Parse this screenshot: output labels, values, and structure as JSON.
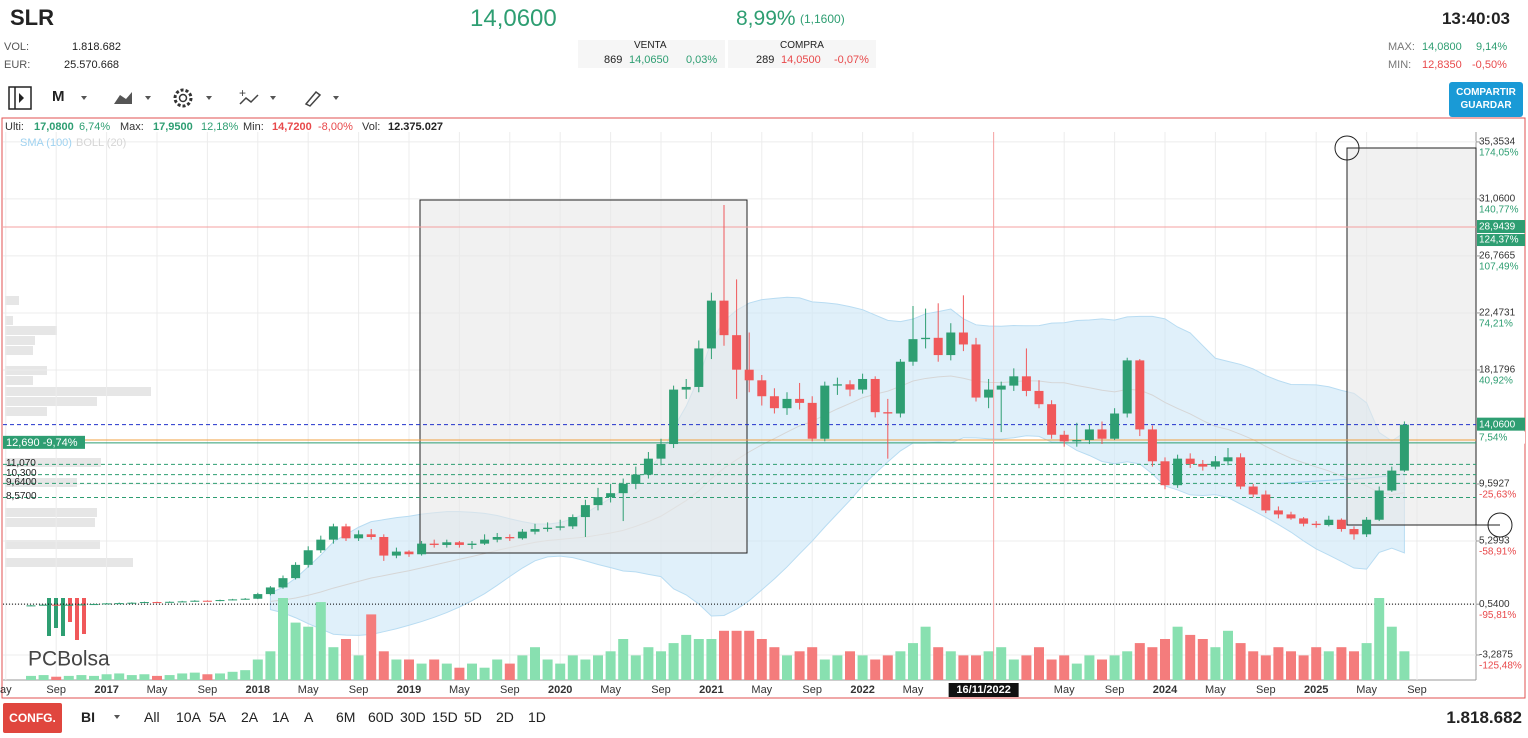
{
  "header": {
    "symbol": "SLR",
    "price": "14,0600",
    "change_pct": "8,99%",
    "change_abs": "(1,1600)",
    "time": "13:40:03",
    "vol_label": "VOL:",
    "vol": "1.818.682",
    "eur_label": "EUR:",
    "eur": "25.570.668",
    "sell": {
      "title": "VENTA",
      "qty": "869",
      "price": "14,0650",
      "pct": "0,03%"
    },
    "buy": {
      "title": "COMPRA",
      "qty": "289",
      "price": "14,0500",
      "pct": "-0,07%"
    },
    "max_label": "MAX:",
    "max": "14,0800",
    "max_pct": "9,14%",
    "min_label": "MIN:",
    "min": "12,8350",
    "min_pct": "-0,50%"
  },
  "toolbar": {
    "period": "M",
    "share": "COMPARTIR",
    "save": "GUARDAR"
  },
  "info": {
    "last_label": "Ulti:",
    "last": "17,0800",
    "last_pct": "6,74%",
    "max_label": "Max:",
    "max": "17,9500",
    "max_pct": "12,18%",
    "min_label": "Min:",
    "min": "14,7200",
    "min_pct": "-8,00%",
    "vol_label": "Vol:",
    "vol": "12.375.027"
  },
  "footer": {
    "config": "CONFG.",
    "mode": "BI",
    "ranges": [
      "All",
      "10A",
      "5A",
      "2A",
      "1A",
      "A",
      "6M",
      "60D",
      "30D",
      "15D",
      "5D",
      "2D",
      "1D"
    ],
    "volume": "1.818.682"
  },
  "logo": "PCBolsa",
  "chart_data": {
    "type": "candlestick",
    "ylim": [
      -5.17,
      36.1
    ],
    "yticks": [
      {
        "value": 35.3534,
        "label": "35,3534"
      },
      {
        "value": 31.06,
        "label": "31,0600"
      },
      {
        "value": 26.7665,
        "label": "26,7665"
      },
      {
        "value": 22.4731,
        "label": "22,4731"
      },
      {
        "value": 18.1796,
        "label": "18,1796"
      },
      {
        "value": 9.5927,
        "label": "9,5927"
      },
      {
        "value": 5.2993,
        "label": "5,2993"
      },
      {
        "value": 0.54,
        "label": "0,5400"
      },
      {
        "value": -3.2875,
        "label": "-3,2875"
      }
    ],
    "ytick_pct": [
      "174,05%",
      "140,77%",
      "107,49%",
      "74,21%",
      "40,92%",
      "-25,63%",
      "-58,91%",
      "-95,81%",
      "-125,48%"
    ],
    "xticks": [
      {
        "value": -2,
        "label": "ay"
      },
      {
        "value": 2,
        "label": "Sep"
      },
      {
        "value": 6,
        "label": "2017"
      },
      {
        "value": 10,
        "label": "May"
      },
      {
        "value": 14,
        "label": "Sep"
      },
      {
        "value": 18,
        "label": "2018"
      },
      {
        "value": 22,
        "label": "May"
      },
      {
        "value": 26,
        "label": "Sep"
      },
      {
        "value": 30,
        "label": "2019"
      },
      {
        "value": 34,
        "label": "May"
      },
      {
        "value": 38,
        "label": "Sep"
      },
      {
        "value": 42,
        "label": "2020"
      },
      {
        "value": 46,
        "label": "May"
      },
      {
        "value": 50,
        "label": "Sep"
      },
      {
        "value": 54,
        "label": "2021"
      },
      {
        "value": 58,
        "label": "May"
      },
      {
        "value": 62,
        "label": "Sep"
      },
      {
        "value": 66,
        "label": "2022"
      },
      {
        "value": 70,
        "label": "May"
      },
      {
        "value": 82,
        "label": "May"
      },
      {
        "value": 86,
        "label": "Sep"
      },
      {
        "value": 90,
        "label": "2024"
      },
      {
        "value": 94,
        "label": "May"
      },
      {
        "value": 98,
        "label": "Sep"
      },
      {
        "value": 102,
        "label": "2025"
      },
      {
        "value": 106,
        "label": "May"
      },
      {
        "value": 110,
        "label": "Sep"
      }
    ],
    "indicators": [
      {
        "name": "SMA (100)",
        "period": 100,
        "color": "#9fd2f0"
      },
      {
        "name": "BOLL (20)",
        "period": 20,
        "color": "#d6d6d6"
      }
    ],
    "up_color": "#2e9e72",
    "down_color": "#f0585a",
    "vol_up_color": "#88e0b0",
    "vol_down_color": "#f47c7c",
    "marker": {
      "index": 76.4,
      "label": "16/11/2022"
    },
    "levels": [
      {
        "value": 28.9439,
        "color": "#f4a0a0",
        "style": "solid",
        "label": "28,9439",
        "pct": "124,37%",
        "side": "right"
      },
      {
        "value": 14.06,
        "color": "#2233cc",
        "style": "dashed",
        "label": "14,0600",
        "pct": "7,54%",
        "side": "right"
      },
      {
        "value": 12.9,
        "color": "#f0a040",
        "style": "solid"
      },
      {
        "value": 12.69,
        "color": "#2e9e72",
        "style": "solid",
        "label": "12,690 -9,74%",
        "side": "left"
      },
      {
        "value": 11.07,
        "color": "#2e9e72",
        "style": "dashed",
        "label": "11,070",
        "side": "left"
      },
      {
        "value": 10.3,
        "color": "#2e9e72",
        "style": "dashed",
        "label": "10,300",
        "side": "left"
      },
      {
        "value": 9.64,
        "color": "#2e9e72",
        "style": "dashed",
        "label": "9,6400",
        "side": "left"
      },
      {
        "value": 8.57,
        "color": "#2e9e72",
        "style": "dashed",
        "label": "8,5700",
        "side": "left"
      },
      {
        "value": 0.54,
        "color": "#000000",
        "style": "dotted"
      }
    ],
    "open": [
      0.42,
      0.45,
      0.5,
      0.48,
      0.5,
      0.52,
      0.55,
      0.6,
      0.62,
      0.65,
      0.7,
      0.68,
      0.72,
      0.75,
      0.8,
      0.78,
      0.85,
      0.9,
      0.95,
      1.3,
      1.8,
      2.5,
      3.5,
      4.6,
      5.4,
      6.4,
      5.5,
      5.8,
      5.6,
      4.2,
      4.5,
      4.3,
      5.1,
      5.0,
      5.2,
      5.0,
      5.1,
      5.4,
      5.6,
      5.5,
      6.0,
      6.2,
      6.3,
      6.4,
      7.1,
      8.0,
      8.6,
      8.9,
      9.6,
      10.3,
      11.5,
      12.6,
      16.7,
      16.9,
      19.8,
      23.4,
      20.8,
      18.2,
      17.4,
      16.2,
      15.3,
      16.0,
      15.7,
      13.0,
      17.0,
      17.1,
      16.7,
      17.5,
      15.0,
      14.9,
      18.8,
      20.5,
      20.6,
      19.3,
      21.0,
      20.1,
      16.1,
      16.7,
      17.0,
      17.7,
      16.6,
      15.6,
      13.3,
      12.8,
      12.9,
      13.7,
      13.0,
      14.9,
      18.9,
      13.7,
      11.3,
      9.5,
      11.5,
      11.1,
      10.9,
      11.3,
      11.6,
      9.4,
      8.8,
      7.6,
      7.3,
      7.0,
      6.6,
      6.5,
      6.9,
      6.2,
      5.8,
      6.9,
      9.1,
      10.6
    ],
    "high": [
      0.48,
      0.52,
      0.52,
      0.52,
      0.55,
      0.58,
      0.63,
      0.66,
      0.68,
      0.73,
      0.73,
      0.75,
      0.79,
      0.84,
      0.83,
      0.88,
      0.94,
      1.0,
      1.4,
      1.9,
      2.7,
      3.7,
      4.9,
      5.7,
      6.6,
      6.6,
      6.1,
      6.2,
      5.8,
      4.8,
      4.6,
      5.3,
      5.4,
      5.4,
      5.3,
      5.3,
      5.8,
      5.9,
      5.8,
      6.2,
      6.6,
      6.7,
      6.9,
      7.3,
      8.4,
      9.3,
      9.6,
      10.0,
      10.9,
      12.0,
      13.0,
      17.0,
      17.5,
      20.4,
      24.0,
      30.6,
      25.0,
      21.0,
      17.8,
      16.8,
      16.5,
      17.2,
      16.2,
      17.3,
      17.6,
      17.4,
      17.9,
      17.7,
      16.0,
      19.0,
      23.0,
      22.8,
      23.2,
      21.7,
      23.8,
      20.6,
      17.5,
      17.3,
      18.3,
      19.8,
      17.4,
      15.9,
      13.6,
      14.2,
      14.1,
      14.3,
      15.3,
      19.1,
      19.0,
      14.0,
      11.6,
      11.8,
      11.9,
      11.4,
      11.7,
      12.3,
      11.9,
      9.6,
      9.1,
      7.9,
      7.5,
      7.1,
      6.8,
      7.2,
      7.0,
      6.4,
      7.1,
      9.4,
      10.9,
      14.3
    ],
    "low": [
      0.4,
      0.44,
      0.46,
      0.46,
      0.48,
      0.5,
      0.53,
      0.58,
      0.6,
      0.63,
      0.65,
      0.66,
      0.7,
      0.73,
      0.75,
      0.76,
      0.83,
      0.88,
      0.92,
      1.2,
      1.7,
      2.4,
      3.3,
      4.4,
      5.1,
      5.3,
      5.3,
      5.4,
      3.8,
      4.0,
      4.1,
      4.2,
      4.8,
      4.8,
      4.8,
      4.7,
      5.0,
      5.2,
      5.3,
      5.4,
      5.8,
      6.0,
      6.1,
      6.2,
      5.6,
      7.6,
      8.2,
      6.8,
      9.2,
      10.0,
      11.0,
      12.3,
      16.0,
      16.5,
      19.0,
      20.0,
      16.0,
      16.5,
      15.5,
      14.9,
      14.8,
      15.2,
      12.8,
      12.8,
      16.3,
      16.2,
      16.4,
      14.6,
      11.5,
      14.6,
      18.5,
      19.8,
      18.8,
      18.9,
      19.6,
      15.8,
      15.3,
      13.5,
      16.6,
      16.2,
      15.3,
      13.0,
      12.4,
      12.4,
      12.6,
      12.6,
      12.9,
      14.6,
      13.2,
      10.9,
      9.2,
      9.3,
      10.8,
      10.6,
      10.7,
      11.0,
      9.2,
      8.6,
      7.4,
      7.0,
      6.9,
      6.4,
      6.3,
      6.4,
      6.0,
      5.4,
      5.6,
      6.8,
      9.0,
      10.5
    ],
    "close": [
      0.45,
      0.5,
      0.48,
      0.5,
      0.52,
      0.55,
      0.6,
      0.62,
      0.65,
      0.7,
      0.68,
      0.72,
      0.75,
      0.8,
      0.78,
      0.85,
      0.9,
      0.95,
      1.3,
      1.8,
      2.5,
      3.5,
      4.6,
      5.4,
      6.4,
      5.5,
      5.8,
      5.6,
      4.2,
      4.5,
      4.3,
      5.1,
      5.0,
      5.2,
      5.0,
      5.1,
      5.4,
      5.6,
      5.5,
      6.0,
      6.2,
      6.3,
      6.4,
      7.1,
      8.0,
      8.6,
      8.9,
      9.6,
      10.3,
      11.5,
      12.6,
      16.7,
      16.9,
      19.8,
      23.4,
      20.8,
      18.2,
      17.4,
      16.2,
      15.3,
      16.0,
      15.7,
      13.0,
      17.0,
      17.1,
      16.7,
      17.5,
      15.0,
      14.9,
      18.8,
      20.5,
      20.6,
      19.3,
      21.0,
      20.1,
      16.1,
      16.7,
      17.0,
      17.7,
      16.6,
      15.6,
      13.3,
      12.8,
      12.9,
      13.7,
      13.0,
      14.9,
      18.9,
      13.7,
      11.3,
      9.5,
      11.5,
      11.1,
      10.9,
      11.3,
      11.6,
      9.4,
      8.8,
      7.6,
      7.3,
      7.0,
      6.6,
      6.5,
      6.9,
      6.2,
      5.8,
      6.9,
      9.1,
      10.6,
      14.06
    ],
    "volume": [
      0.5,
      0.6,
      0.4,
      0.5,
      0.6,
      0.5,
      0.7,
      0.8,
      0.6,
      0.7,
      0.5,
      0.6,
      0.8,
      0.9,
      0.7,
      0.8,
      1.0,
      1.2,
      2.5,
      3.5,
      10.0,
      7.0,
      6.5,
      9.5,
      4.0,
      5.0,
      3.0,
      8.0,
      3.5,
      2.5,
      2.5,
      2.0,
      2.5,
      2.0,
      1.5,
      2.0,
      1.5,
      2.5,
      2.0,
      3.0,
      4.0,
      2.5,
      2.0,
      3.0,
      2.5,
      3.0,
      3.5,
      5.0,
      3.0,
      4.0,
      3.5,
      4.5,
      5.5,
      5.0,
      5.0,
      6.0,
      6.0,
      6.0,
      5.0,
      4.0,
      3.0,
      3.5,
      4.0,
      2.5,
      3.0,
      3.5,
      3.0,
      2.5,
      3.0,
      3.5,
      4.5,
      6.5,
      4.0,
      3.5,
      3.0,
      3.0,
      3.5,
      4.0,
      2.5,
      3.0,
      4.0,
      2.5,
      3.0,
      2.0,
      3.0,
      2.5,
      3.0,
      3.5,
      4.5,
      4.0,
      5.0,
      6.5,
      5.5,
      5.0,
      4.0,
      6.0,
      4.5,
      3.5,
      3.0,
      4.0,
      3.5,
      3.0,
      4.0,
      3.5,
      4.0,
      3.5,
      4.5,
      10.0,
      6.5,
      3.5
    ]
  }
}
